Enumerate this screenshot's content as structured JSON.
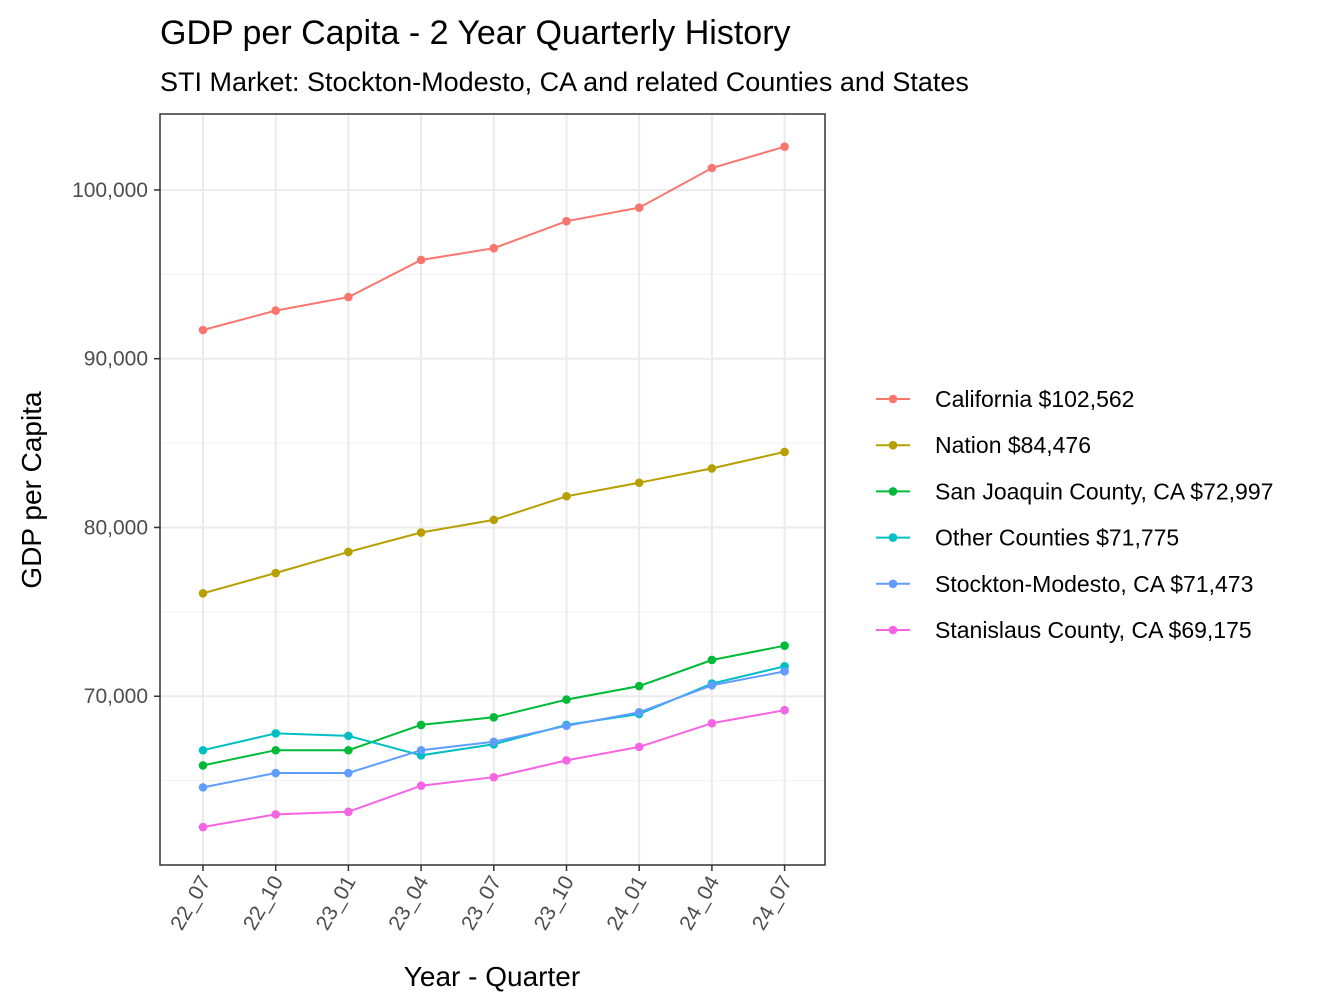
{
  "chart_data": {
    "type": "line",
    "title": "GDP per Capita - 2 Year Quarterly History",
    "subtitle": "STI Market: Stockton-Modesto, CA and related Counties and States",
    "xlabel": "Year - Quarter",
    "ylabel": "GDP per Capita",
    "categories": [
      "22_07",
      "22_10",
      "23_01",
      "23_04",
      "23_07",
      "23_10",
      "24_01",
      "24_04",
      "24_07"
    ],
    "ylim": [
      60000,
      104500
    ],
    "yticks": [
      70000,
      80000,
      90000,
      100000
    ],
    "ytick_labels": [
      "70,000",
      "80,000",
      "90,000",
      "100,000"
    ],
    "grid": true,
    "legend_position": "right",
    "series": [
      {
        "name": "California $102,562",
        "color": "#F8766D",
        "values": [
          91700,
          92850,
          93650,
          95850,
          96550,
          98150,
          98950,
          101300,
          102562
        ]
      },
      {
        "name": "Nation $84,476",
        "color": "#B79F00",
        "values": [
          76100,
          77300,
          78550,
          79700,
          80450,
          81850,
          82650,
          83500,
          84476
        ]
      },
      {
        "name": "San Joaquin County, CA $72,997",
        "color": "#00BA38",
        "values": [
          65900,
          66800,
          66800,
          68300,
          68750,
          69800,
          70600,
          72150,
          72997
        ]
      },
      {
        "name": "Other Counties $71,775",
        "color": "#00BFC4",
        "values": [
          66800,
          67800,
          67650,
          66500,
          67150,
          68300,
          68950,
          70750,
          71775
        ]
      },
      {
        "name": "Stockton-Modesto, CA $71,473",
        "color": "#619CFF",
        "values": [
          64600,
          65450,
          65450,
          66800,
          67300,
          68250,
          69050,
          70650,
          71473
        ]
      },
      {
        "name": "Stanislaus County, CA $69,175",
        "color": "#F564E3",
        "values": [
          62250,
          63000,
          63150,
          64700,
          65200,
          66200,
          67000,
          68400,
          69175
        ]
      }
    ]
  }
}
